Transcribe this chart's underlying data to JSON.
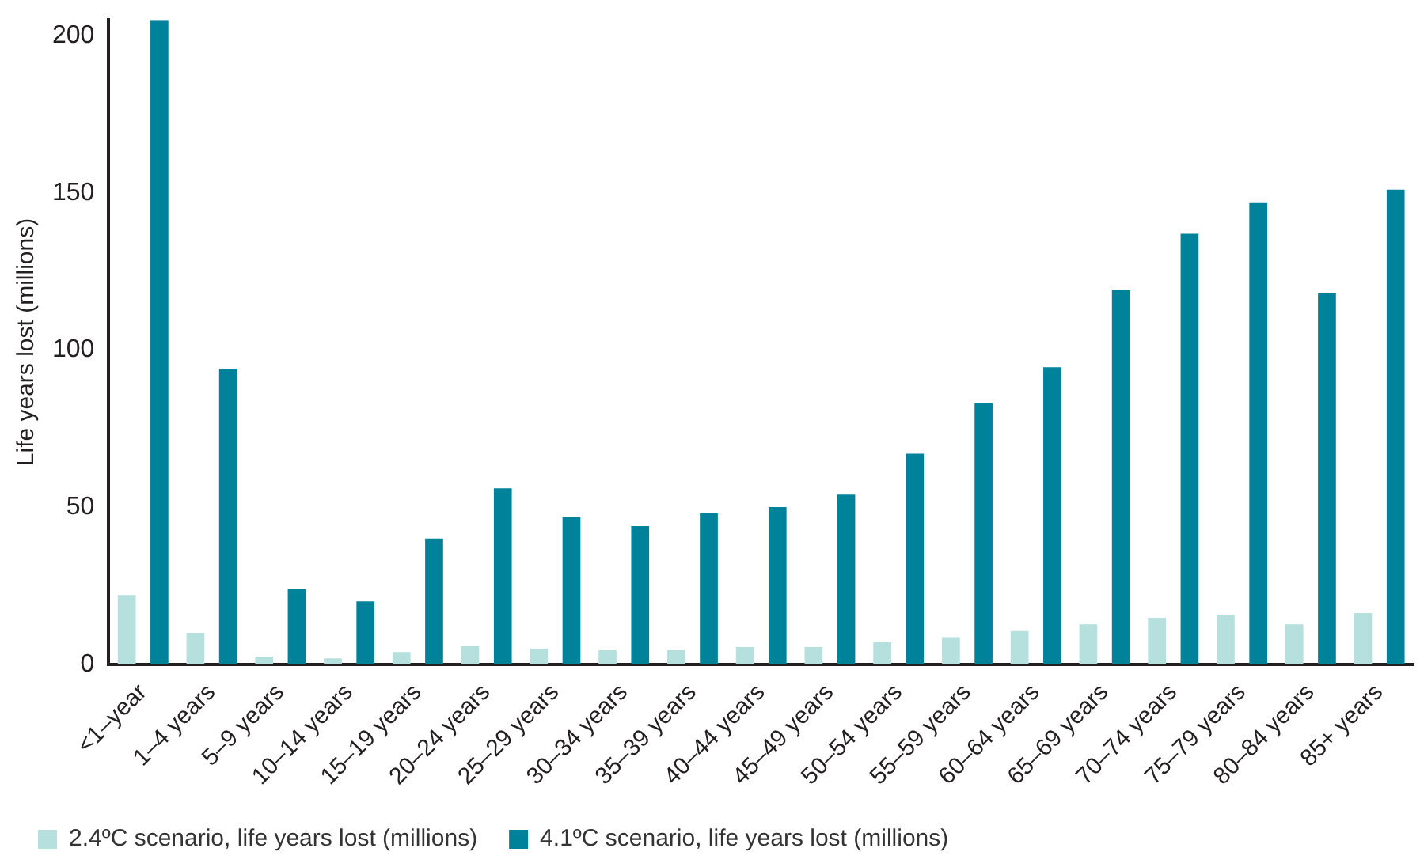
{
  "chart_data": {
    "type": "bar",
    "ylabel": "Life years lost (millions)",
    "categories": [
      "<1–year",
      "1–4 years",
      "5–9 years",
      "10–14 years",
      "15–19 years",
      "20–24 years",
      "25–29 years",
      "30–34 years",
      "35–39 years",
      "40–44 years",
      "45–49 years",
      "50–54 years",
      "55–59 years",
      "60–64 years",
      "65–69 years",
      "70–74 years",
      "75–79 years",
      "80–84 years",
      "85+ years"
    ],
    "series": [
      {
        "name": "2.4ºC scenario, life years lost (millions)",
        "color": "#b6e0de",
        "values": [
          22,
          10,
          2.4,
          1.9,
          3.9,
          6,
          5,
          4.5,
          4.5,
          5.5,
          5.5,
          7,
          8.6,
          10.6,
          12.7,
          14.8,
          15.8,
          12.7,
          16.3
        ]
      },
      {
        "name": "4.1ºC scenario, life years lost (millions)",
        "color": "#00829a",
        "values": [
          205,
          94,
          24,
          20,
          40,
          56,
          47,
          44,
          48,
          50,
          54,
          67,
          83,
          94.5,
          119,
          137,
          147,
          118,
          151
        ]
      }
    ],
    "ylim": [
      0,
      205
    ],
    "yticks": [
      0,
      50,
      100,
      150,
      200
    ],
    "grid": false,
    "legend": "bottom"
  }
}
